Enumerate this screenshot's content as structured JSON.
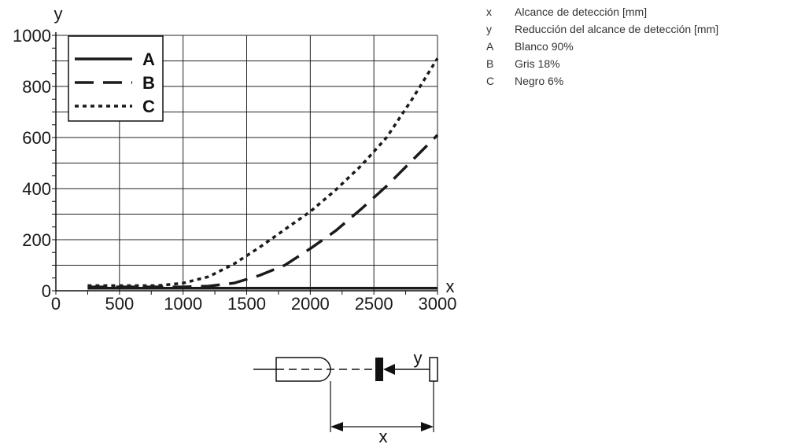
{
  "chart_data": {
    "type": "line",
    "axis_x_label": "x",
    "axis_y_label": "y",
    "xlim": [
      0,
      3000
    ],
    "ylim": [
      0,
      1000
    ],
    "x_ticks": [
      0,
      500,
      1000,
      1500,
      2000,
      2500,
      3000
    ],
    "y_ticks": [
      0,
      200,
      400,
      600,
      800,
      1000
    ],
    "grid": true,
    "legend_position": "top-left",
    "series": [
      {
        "name": "A",
        "style": "solid",
        "points": [
          [
            250,
            10
          ],
          [
            500,
            10
          ],
          [
            1000,
            10
          ],
          [
            1500,
            10
          ],
          [
            2000,
            10
          ],
          [
            2500,
            10
          ],
          [
            3000,
            10
          ]
        ]
      },
      {
        "name": "B",
        "style": "dashed",
        "points": [
          [
            250,
            15
          ],
          [
            500,
            15
          ],
          [
            800,
            15
          ],
          [
            1000,
            15
          ],
          [
            1200,
            18
          ],
          [
            1400,
            30
          ],
          [
            1600,
            60
          ],
          [
            1800,
            100
          ],
          [
            2000,
            165
          ],
          [
            2200,
            235
          ],
          [
            2400,
            320
          ],
          [
            2600,
            410
          ],
          [
            2800,
            510
          ],
          [
            3000,
            610
          ]
        ]
      },
      {
        "name": "C",
        "style": "dotted",
        "points": [
          [
            250,
            20
          ],
          [
            500,
            20
          ],
          [
            800,
            20
          ],
          [
            1000,
            30
          ],
          [
            1200,
            55
          ],
          [
            1400,
            105
          ],
          [
            1600,
            170
          ],
          [
            1800,
            240
          ],
          [
            2000,
            310
          ],
          [
            2200,
            395
          ],
          [
            2400,
            490
          ],
          [
            2600,
            600
          ],
          [
            2800,
            750
          ],
          [
            3000,
            910
          ]
        ]
      }
    ]
  },
  "legend_items": [
    {
      "key": "x",
      "text": "Alcance de detección [mm]"
    },
    {
      "key": "y",
      "text": "Reducción del alcance de detección [mm]"
    },
    {
      "key": "A",
      "text": "Blanco 90%"
    },
    {
      "key": "B",
      "text": "Gris 18%"
    },
    {
      "key": "C",
      "text": "Negro 6%"
    }
  ],
  "diagram": {
    "x_label": "x",
    "y_label": "y"
  }
}
